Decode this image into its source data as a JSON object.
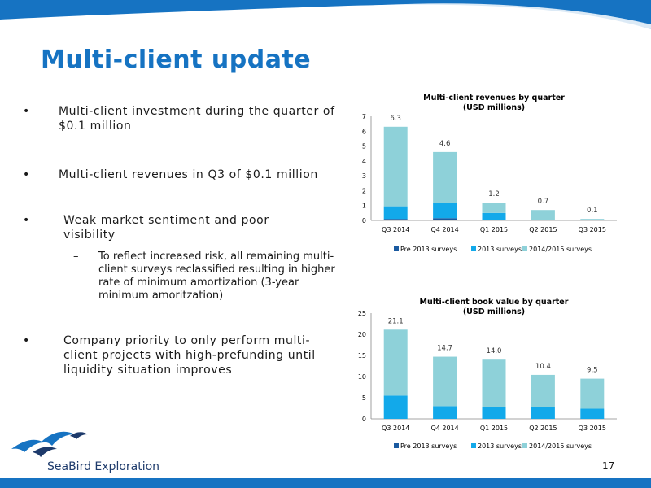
{
  "slide": {
    "title": "Multi-client update",
    "page_number": "17",
    "logo_text": "SeaBird Exploration"
  },
  "colors": {
    "brand_blue": "#1673c2",
    "pre2013": "#1a5aa0",
    "s2013": "#12a9ea",
    "s2014_2015": "#8ed1d9"
  },
  "bullets": [
    {
      "marker": "•",
      "text": "Multi-client investment during the quarter of $0.1 million"
    },
    {
      "marker": "•",
      "text": "Multi-client revenues in Q3 of $0.1 million"
    },
    {
      "marker": "•",
      "text": "Weak market sentiment and poor visibility"
    },
    {
      "marker": "•",
      "text": "Company priority to only perform multi-client projects with high-prefunding until liquidity situation improves"
    }
  ],
  "sub_bullet": {
    "marker": "–",
    "text": "To reflect increased risk, all remaining multi-client surveys reclassified resulting in higher rate of minimum amortization (3-year minimum amoritzation)"
  },
  "chart_data": [
    {
      "type": "bar",
      "stacked": true,
      "title_line1": "Multi-client revenues by quarter",
      "title_line2": "(USD millions)",
      "categories": [
        "Q3 2014",
        "Q4 2014",
        "Q1 2015",
        "Q2 2015",
        "Q3 2015"
      ],
      "series": [
        {
          "name": "Pre 2013 surveys",
          "values": [
            0.1,
            0.15,
            0.0,
            0.0,
            0.0
          ]
        },
        {
          "name": "2013 surveys",
          "values": [
            0.85,
            1.05,
            0.5,
            0.0,
            0.0
          ]
        },
        {
          "name": "2014/2015 surveys",
          "values": [
            5.35,
            3.4,
            0.7,
            0.7,
            0.1
          ]
        }
      ],
      "totals": [
        "6.3",
        "4.6",
        "1.2",
        "0.7",
        "0.1"
      ],
      "ylim": [
        0,
        7
      ],
      "yticks": [
        "0",
        "1",
        "2",
        "3",
        "4",
        "5",
        "6",
        "7"
      ],
      "legend_position": "bottom"
    },
    {
      "type": "bar",
      "stacked": true,
      "title_line1": "Multi-client book value by quarter",
      "title_line2": "(USD millions)",
      "categories": [
        "Q3 2014",
        "Q4 2014",
        "Q1 2015",
        "Q2 2015",
        "Q3 2015"
      ],
      "series": [
        {
          "name": "Pre 2013 surveys",
          "values": [
            0.0,
            0.0,
            0.0,
            0.0,
            0.0
          ]
        },
        {
          "name": "2013 surveys",
          "values": [
            5.5,
            3.0,
            2.7,
            2.8,
            2.4
          ]
        },
        {
          "name": "2014/2015 surveys",
          "values": [
            15.6,
            11.7,
            11.3,
            7.6,
            7.1
          ]
        }
      ],
      "totals": [
        "21.1",
        "14.7",
        "14.0",
        "10.4",
        "9.5"
      ],
      "ylim": [
        0,
        25
      ],
      "yticks": [
        "0",
        "5",
        "10",
        "15",
        "20",
        "25"
      ],
      "legend_position": "bottom"
    }
  ]
}
